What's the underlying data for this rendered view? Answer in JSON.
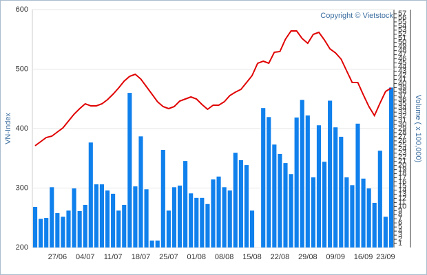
{
  "chart_data": {
    "type": "bar",
    "annotation": "Copyright © Vietstock",
    "y_label": "VN-Index",
    "y2_label": "Volume ( x 100,000)",
    "categories": [
      null,
      null,
      null,
      null,
      "27/06",
      null,
      null,
      null,
      null,
      "04/07",
      null,
      null,
      null,
      null,
      "11/07",
      null,
      null,
      null,
      null,
      "18/07",
      null,
      null,
      null,
      null,
      "25/07",
      null,
      null,
      null,
      null,
      "01/08",
      null,
      null,
      null,
      null,
      "08/08",
      null,
      null,
      null,
      null,
      "15/08",
      null,
      null,
      null,
      null,
      "22/08",
      null,
      null,
      null,
      null,
      "29/08",
      null,
      null,
      null,
      null,
      "09/09",
      null,
      null,
      null,
      null,
      "16/09",
      null,
      null,
      null,
      "23/09",
      null
    ],
    "series": [
      {
        "type": "bar",
        "axis": "y2",
        "color": "#1080ec",
        "values": [
          9.9,
          7.0,
          7.2,
          14.7,
          8.4,
          7.5,
          9.0,
          14.4,
          8.9,
          10.4,
          25.6,
          15.4,
          15.4,
          13.9,
          13.1,
          9.0,
          10.4,
          37.7,
          14.9,
          27.1,
          14.2,
          1.7,
          1.7,
          23.8,
          9.0,
          14.7,
          15.1,
          21.1,
          13.2,
          12.1,
          12.1,
          10.6,
          16.6,
          17.3,
          14.7,
          13.9,
          23.1,
          21.3,
          20.1,
          9.0,
          null,
          34.0,
          31.8,
          25.1,
          22.8,
          20.6,
          17.9,
          31.7,
          36.0,
          32.2,
          17.1,
          29.8,
          20.9,
          35.8,
          29.3,
          27.0,
          17.1,
          15.2,
          30.2,
          16.8,
          14.4,
          10.9,
          23.6,
          7.5,
          39.0
        ]
      },
      {
        "type": "line",
        "color": "#e00000",
        "values": [
          371.1,
          378.0,
          385.0,
          387.3,
          394.2,
          401.2,
          412.7,
          424.3,
          433.5,
          441.6,
          438.2,
          438.2,
          441.6,
          448.6,
          457.8,
          468.2,
          479.8,
          487.9,
          491.3,
          483.2,
          470.5,
          457.8,
          445.1,
          437.0,
          433.5,
          437.0,
          446.2,
          449.7,
          453.2,
          449.7,
          440.5,
          432.4,
          439.3,
          439.3,
          445.1,
          455.5,
          461.3,
          465.9,
          477.5,
          489.0,
          509.8,
          513.3,
          509.8,
          528.3,
          529.5,
          550.3,
          564.2,
          564.2,
          551.4,
          543.4,
          558.4,
          561.8,
          549.1,
          534.1,
          527.2,
          516.8,
          497.1,
          477.5,
          477.5,
          456.6,
          437.0,
          421.8,
          442.8,
          462.4,
          468.2
        ]
      }
    ],
    "ylim": [
      200,
      600
    ],
    "yticks": [
      200,
      300,
      400,
      500,
      600
    ],
    "y2lim": [
      0,
      58
    ],
    "y2ticks": [
      1,
      2,
      3,
      4,
      5,
      6,
      7,
      8,
      9,
      10,
      11,
      12,
      13,
      14,
      15,
      16,
      17,
      18,
      19,
      20,
      21,
      22,
      23,
      24,
      25,
      26,
      27,
      28,
      29,
      30,
      31,
      32,
      33,
      34,
      35,
      36,
      37,
      38,
      39,
      40,
      41,
      42,
      43,
      44,
      45,
      46,
      47,
      48,
      49,
      50,
      51,
      52,
      53,
      54,
      55,
      56,
      57
    ],
    "grid": true
  }
}
